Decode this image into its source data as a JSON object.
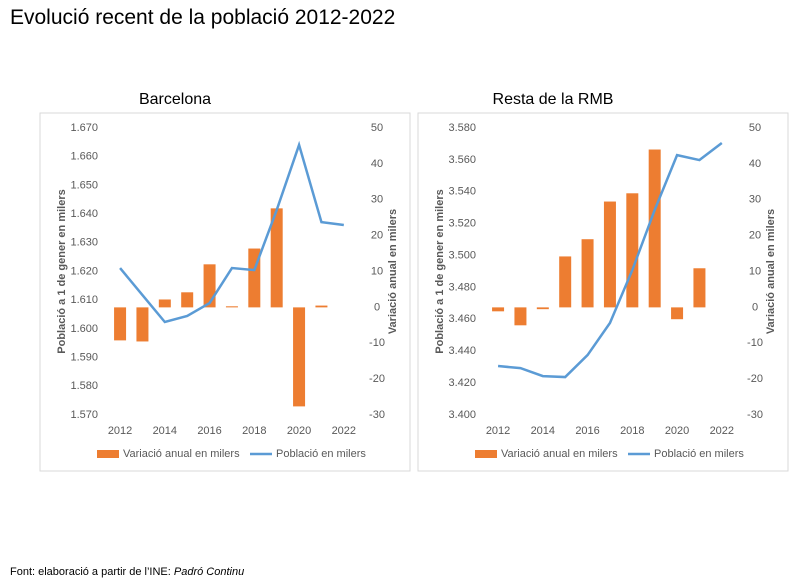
{
  "title": "Evolució recent de la població 2012-2022",
  "source": {
    "text": "Font: elaboració a partir de l’INE:",
    "emphasis": "Padró Continu"
  },
  "chart_data": [
    {
      "type": "combo",
      "title": "Barcelona",
      "y_label": "Població a 1 de gener en milers",
      "y2_label": "Variació anual en milers",
      "x": [
        2012,
        2013,
        2014,
        2015,
        2016,
        2017,
        2018,
        2019,
        2020,
        2021,
        2022
      ],
      "xlim": [
        2011.55,
        2022.5
      ],
      "xticks": [
        2012,
        2014,
        2016,
        2018,
        2020,
        2022
      ],
      "ylim": [
        1570,
        1670
      ],
      "yticks": [
        {
          "value": 1570,
          "label": "1.570"
        },
        {
          "value": 1580,
          "label": "1.580"
        },
        {
          "value": 1590,
          "label": "1.590"
        },
        {
          "value": 1600,
          "label": "1.600"
        },
        {
          "value": 1610,
          "label": "1.610"
        },
        {
          "value": 1620,
          "label": "1.620"
        },
        {
          "value": 1630,
          "label": "1.630"
        },
        {
          "value": 1640,
          "label": "1.640"
        },
        {
          "value": 1650,
          "label": "1.650"
        },
        {
          "value": 1660,
          "label": "1.660"
        },
        {
          "value": 1670,
          "label": "1.670"
        }
      ],
      "y2lim": [
        -30,
        50
      ],
      "y2ticks": [
        -30,
        -20,
        -10,
        0,
        10,
        20,
        30,
        40,
        50
      ],
      "series": [
        {
          "name": "Variació anual en milers",
          "color": "#ED7D31",
          "type": "bar",
          "axis": "y2",
          "values": [
            -9.2,
            -9.5,
            2.2,
            4.2,
            12,
            0.3,
            16.4,
            27.6,
            -27.6,
            0.5,
            null
          ]
        },
        {
          "name": "Població en milers",
          "color": "#5B9BD5",
          "type": "line",
          "values": [
            1621.2,
            1611.8,
            1602.4,
            1604.5,
            1609,
            1621.2,
            1620.5,
            1641.4,
            1664.1,
            1637.2,
            1636.2
          ]
        }
      ]
    },
    {
      "type": "combo",
      "title": "Resta de la RMB",
      "y_label": "Població a 1 de gener en milers",
      "y2_label": "Variació anual en milers",
      "x": [
        2012,
        2013,
        2014,
        2015,
        2016,
        2017,
        2018,
        2019,
        2020,
        2021,
        2022
      ],
      "xlim": [
        2011.55,
        2022.5
      ],
      "xticks": [
        2012,
        2014,
        2016,
        2018,
        2020,
        2022
      ],
      "ylim": [
        3400,
        3580
      ],
      "yticks": [
        {
          "value": 3400,
          "label": "3.400"
        },
        {
          "value": 3420,
          "label": "3.420"
        },
        {
          "value": 3440,
          "label": "3.440"
        },
        {
          "value": 3460,
          "label": "3.460"
        },
        {
          "value": 3480,
          "label": "3.480"
        },
        {
          "value": 3500,
          "label": "3.500"
        },
        {
          "value": 3520,
          "label": "3.520"
        },
        {
          "value": 3540,
          "label": "3.540"
        },
        {
          "value": 3560,
          "label": "3.560"
        },
        {
          "value": 3580,
          "label": "3.580"
        }
      ],
      "y2lim": [
        -30,
        50
      ],
      "y2ticks": [
        -30,
        -20,
        -10,
        0,
        10,
        20,
        30,
        40,
        50
      ],
      "series": [
        {
          "name": "Variació anual en milers",
          "color": "#ED7D31",
          "type": "bar",
          "axis": "y2",
          "values": [
            -1.1,
            -5,
            -0.5,
            14.2,
            19,
            29.5,
            31.8,
            44,
            -3.3,
            10.9,
            null
          ]
        },
        {
          "name": "Població en milers",
          "color": "#5B9BD5",
          "type": "line",
          "values": [
            3430.7,
            3429.4,
            3424.4,
            3423.8,
            3437.6,
            3457.7,
            3490.9,
            3528.6,
            3563,
            3559.9,
            3570.6
          ]
        }
      ]
    }
  ]
}
